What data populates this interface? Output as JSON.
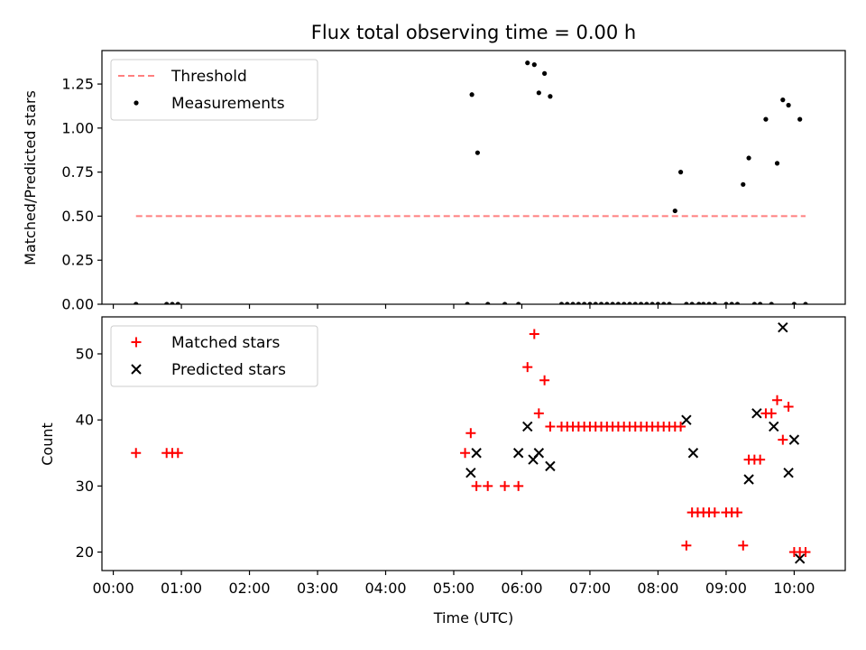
{
  "chart_data": [
    {
      "type": "scatter",
      "title": "Flux total observing time = 0.00 h",
      "ylabel": "Matched/Predicted stars",
      "xlabel": "",
      "xlim": [
        "-0:10",
        "10:45"
      ],
      "ylim": [
        0,
        1.44
      ],
      "yticks": [
        "0.00",
        "0.25",
        "0.50",
        "0.75",
        "1.00",
        "1.25"
      ],
      "legend_position": "top-left",
      "grid": false,
      "series": [
        {
          "name": "Threshold",
          "kind": "line",
          "style": "dashed",
          "color": "#ff7f7f",
          "x": [
            "0:20",
            "10:10"
          ],
          "y": [
            0.5,
            0.5
          ]
        },
        {
          "name": "Measurements",
          "kind": "scatter",
          "marker": "dot",
          "color": "#000000",
          "x": [
            "0:20",
            "0:47",
            "0:52",
            "0:57",
            "5:12",
            "5:16",
            "5:21",
            "5:30",
            "5:45",
            "5:57",
            "6:05",
            "6:11",
            "6:15",
            "6:20",
            "6:25",
            "6:35",
            "6:40",
            "6:45",
            "6:50",
            "6:55",
            "7:00",
            "7:05",
            "7:10",
            "7:15",
            "7:20",
            "7:25",
            "7:30",
            "7:35",
            "7:40",
            "7:45",
            "7:50",
            "7:55",
            "8:00",
            "8:05",
            "8:10",
            "8:15",
            "8:20",
            "8:25",
            "8:30",
            "8:36",
            "8:40",
            "8:45",
            "8:50",
            "9:00",
            "9:05",
            "9:10",
            "9:15",
            "9:20",
            "9:25",
            "9:30",
            "9:35",
            "9:40",
            "9:45",
            "9:50",
            "9:55",
            "10:00",
            "10:05",
            "10:10"
          ],
          "y": [
            0,
            0,
            0,
            0,
            0,
            1.19,
            0.86,
            0,
            0,
            0,
            1.37,
            1.36,
            1.2,
            1.31,
            1.18,
            0,
            0,
            0,
            0,
            0,
            0,
            0,
            0,
            0,
            0,
            0,
            0,
            0,
            0,
            0,
            0,
            0,
            0,
            0,
            0,
            0.53,
            0.75,
            0,
            0,
            0,
            0,
            0,
            0,
            0,
            0,
            0,
            0.68,
            0.83,
            0,
            0,
            1.05,
            0,
            0.8,
            1.16,
            1.13,
            0,
            1.05,
            0
          ]
        }
      ]
    },
    {
      "type": "scatter",
      "title": "",
      "xlabel": "Time (UTC)",
      "ylabel": "Count",
      "xlim": [
        "-0:10",
        "10:45"
      ],
      "ylim": [
        17.2,
        55.6
      ],
      "yticks": [
        "20",
        "30",
        "40",
        "50"
      ],
      "xticks": [
        "00:00",
        "01:00",
        "02:00",
        "03:00",
        "04:00",
        "05:00",
        "06:00",
        "07:00",
        "08:00",
        "09:00",
        "10:00"
      ],
      "legend_position": "top-left",
      "grid": false,
      "series": [
        {
          "name": "Matched stars",
          "kind": "scatter",
          "marker": "plus",
          "color": "#ff0000",
          "x": [
            "0:20",
            "0:47",
            "0:52",
            "0:57",
            "5:10",
            "5:15",
            "5:20",
            "5:30",
            "5:45",
            "5:57",
            "6:05",
            "6:11",
            "6:15",
            "6:20",
            "6:25",
            "6:35",
            "6:40",
            "6:45",
            "6:50",
            "6:55",
            "7:00",
            "7:05",
            "7:10",
            "7:15",
            "7:20",
            "7:25",
            "7:30",
            "7:35",
            "7:40",
            "7:45",
            "7:50",
            "7:55",
            "8:00",
            "8:05",
            "8:10",
            "8:15",
            "8:20",
            "8:25",
            "8:30",
            "8:35",
            "8:40",
            "8:45",
            "8:50",
            "9:00",
            "9:05",
            "9:10",
            "9:15",
            "9:20",
            "9:25",
            "9:30",
            "9:35",
            "9:40",
            "9:45",
            "9:50",
            "9:55",
            "10:00",
            "10:05",
            "10:10"
          ],
          "y": [
            35,
            35,
            35,
            35,
            35,
            38,
            30,
            30,
            30,
            30,
            48,
            53,
            41,
            46,
            39,
            39,
            39,
            39,
            39,
            39,
            39,
            39,
            39,
            39,
            39,
            39,
            39,
            39,
            39,
            39,
            39,
            39,
            39,
            39,
            39,
            39,
            39,
            21,
            26,
            26,
            26,
            26,
            26,
            26,
            26,
            26,
            21,
            34,
            34,
            34,
            41,
            41,
            43,
            37,
            42,
            20,
            20,
            20
          ]
        },
        {
          "name": "Predicted stars",
          "kind": "scatter",
          "marker": "x",
          "color": "#000000",
          "x": [
            "5:15",
            "5:20",
            "5:57",
            "6:05",
            "6:10",
            "6:15",
            "6:25",
            "8:25",
            "8:31",
            "9:20",
            "9:27",
            "9:42",
            "9:50",
            "9:55",
            "10:00",
            "10:05"
          ],
          "y": [
            32,
            35,
            35,
            39,
            34,
            35,
            33,
            40,
            35,
            31,
            41,
            39,
            54,
            32,
            37,
            19
          ]
        }
      ]
    }
  ]
}
